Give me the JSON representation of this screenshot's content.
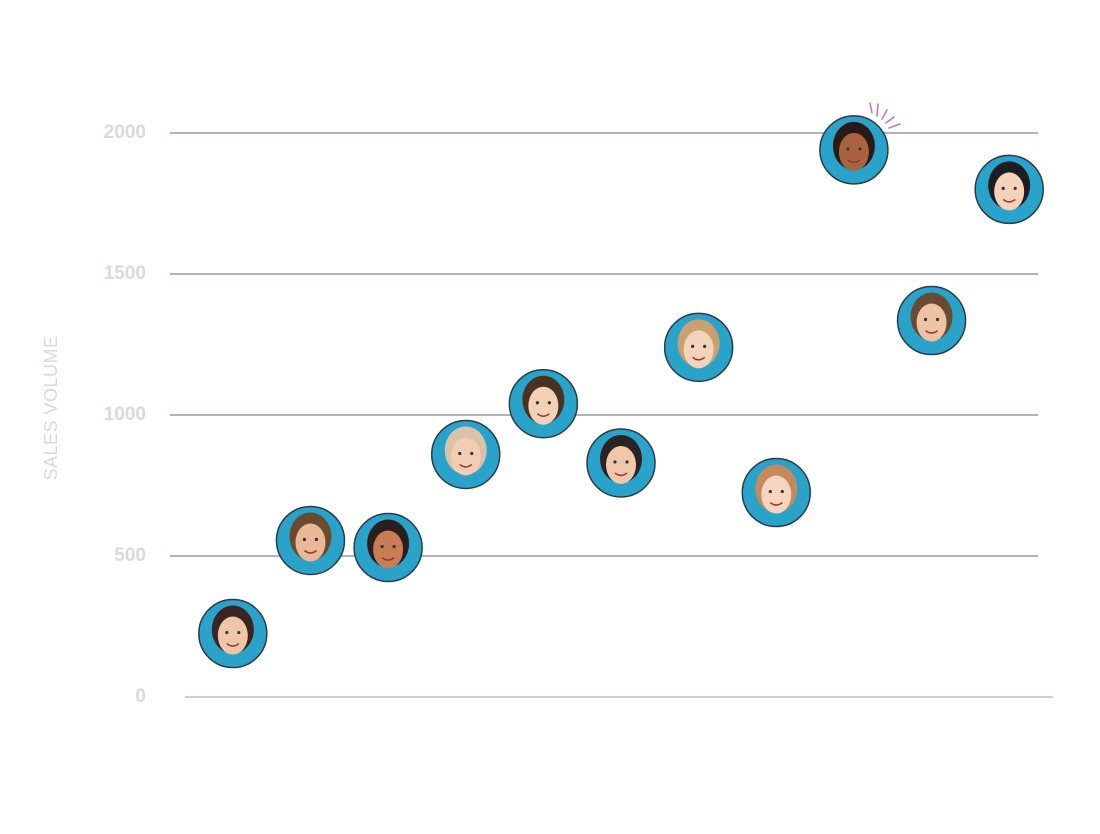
{
  "chart_data": {
    "type": "scatter",
    "y_label": "SALES VOLUME",
    "categories": [
      null,
      null,
      null,
      null,
      null,
      null,
      null,
      null,
      null,
      null,
      null
    ],
    "values": [
      225,
      555,
      530,
      860,
      1040,
      830,
      1240,
      725,
      1940,
      1335,
      1800
    ],
    "color": "#29a3c9",
    "ylim": [
      0,
      2000
    ],
    "yticks": [
      0,
      500,
      1000,
      1500,
      2000
    ],
    "grid": true
  }
}
